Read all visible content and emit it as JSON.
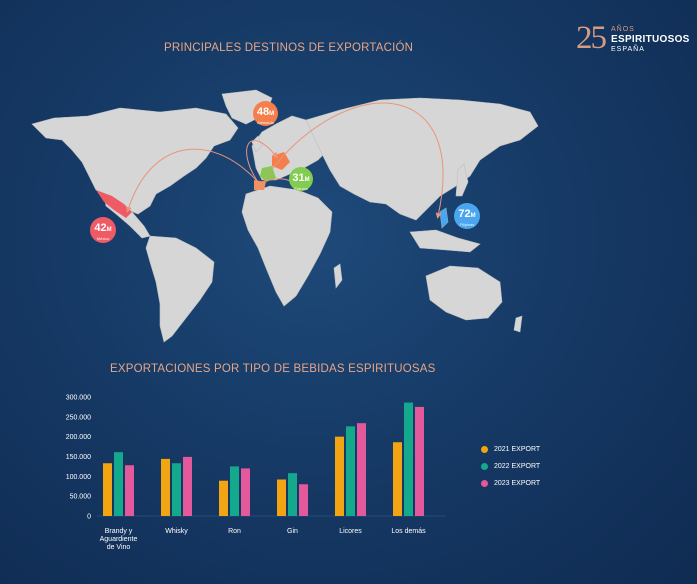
{
  "brand": {
    "number": "25",
    "line1": "AÑOS",
    "line2": "ESPIRITUOSOS",
    "line3": "ESPAÑA"
  },
  "map": {
    "title": "PRINCIPALES DESTINOS DE EXPORTACIÓN",
    "bubbles": [
      {
        "value": "48",
        "unit": "M",
        "country": "Alemania",
        "color": "#f47f4c"
      },
      {
        "value": "31",
        "unit": "M",
        "country": "Francia",
        "color": "#82cc52"
      },
      {
        "value": "42",
        "unit": "M",
        "country": "México",
        "color": "#ee5b64"
      },
      {
        "value": "72",
        "unit": "M",
        "country": "Filipinas",
        "color": "#4aa7ef"
      }
    ]
  },
  "chart": {
    "title": "EXPORTACIONES POR TIPO DE BEBIDAS ESPIRITUOSAS"
  },
  "chart_data": {
    "type": "bar",
    "categories": [
      "Brandy y Aguardiente de Vino",
      "Whisky",
      "Ron",
      "Gin",
      "Licores",
      "Los demás"
    ],
    "series": [
      {
        "name": "2021 EXPORT",
        "color": "#f3a412",
        "values": [
          133000,
          144000,
          89000,
          92000,
          200000,
          186000
        ]
      },
      {
        "name": "2022 EXPORT",
        "color": "#14a88c",
        "values": [
          161000,
          133000,
          125000,
          108000,
          226000,
          286000
        ]
      },
      {
        "name": "2023 EXPORT",
        "color": "#e4589c",
        "values": [
          128000,
          149000,
          120000,
          80000,
          234000,
          275000
        ]
      }
    ],
    "ylim": [
      0,
      300000
    ],
    "yticks": [
      "0",
      "50.000",
      "100.000",
      "150.000",
      "200.000",
      "250.000",
      "300.000"
    ],
    "ytick_values": [
      0,
      50000,
      100000,
      150000,
      200000,
      250000,
      300000
    ],
    "grid": false,
    "legend_position": "right"
  }
}
